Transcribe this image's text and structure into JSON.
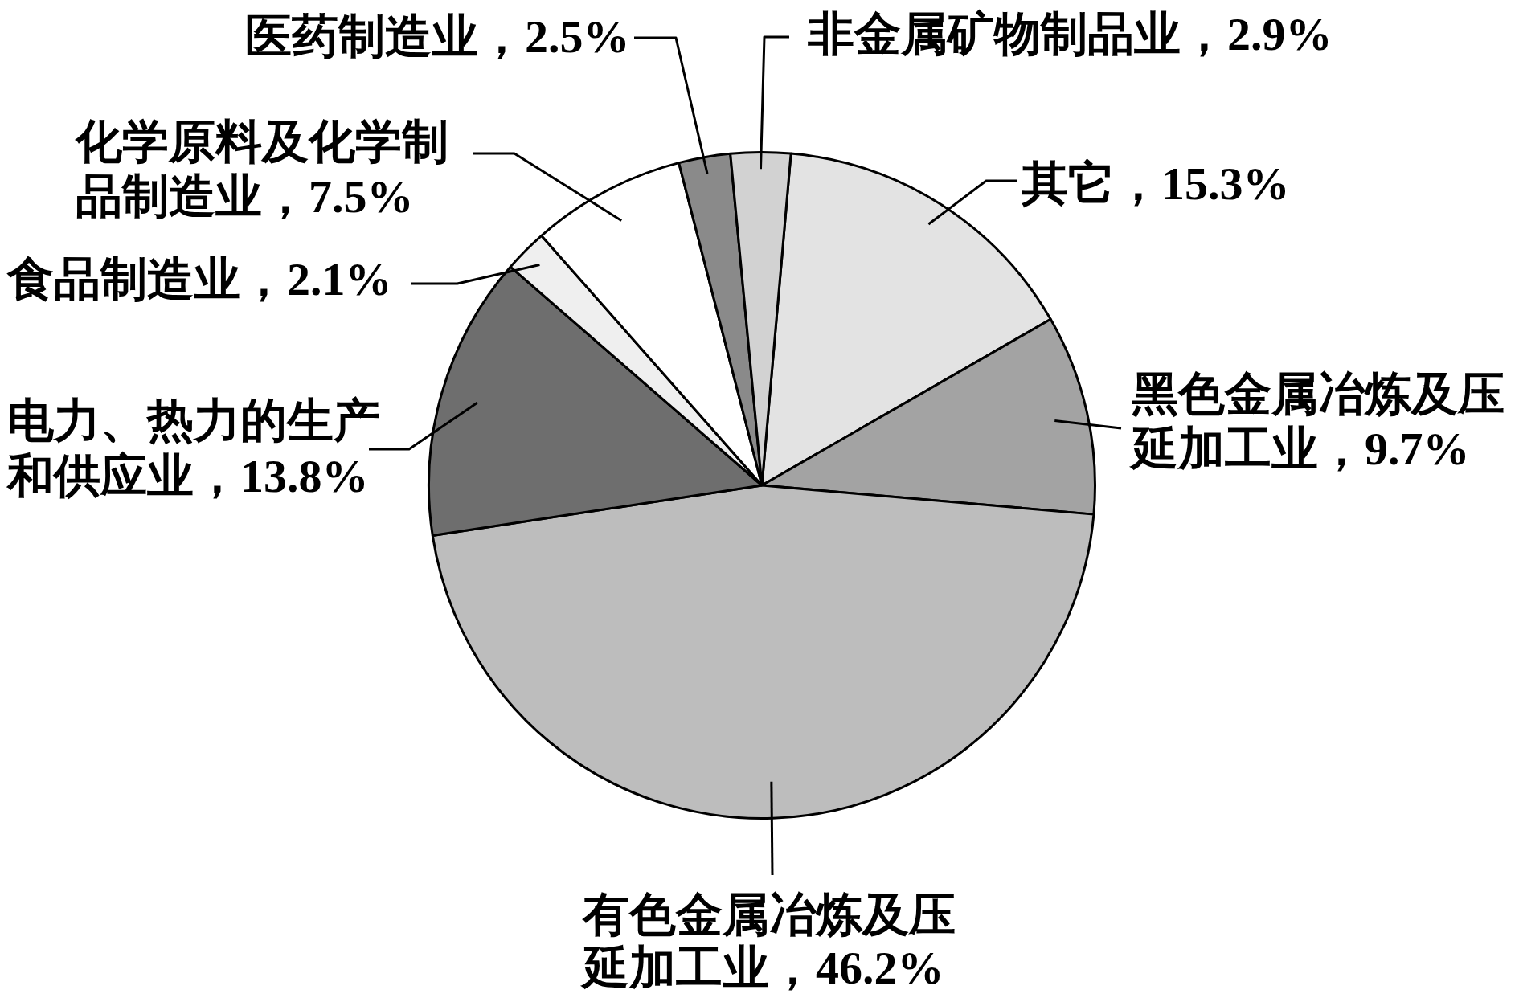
{
  "chart_data": {
    "type": "pie",
    "categories": [
      "其它",
      "黑色金属冶炼及压延加工业",
      "有色金属冶炼及压延加工业",
      "电力、热力的生产和供应业",
      "食品制造业",
      "化学原料及化学制品制造业",
      "医药制造业",
      "非金属矿物制品业"
    ],
    "values": [
      15.3,
      9.7,
      46.2,
      13.8,
      2.1,
      7.5,
      2.5,
      2.9
    ],
    "value_labels": [
      "15.3%",
      "9.7%",
      "46.2%",
      "13.8%",
      "2.1%",
      "7.5%",
      "2.5%",
      "2.9%"
    ],
    "colors": [
      "#e3e3e3",
      "#a3a3a3",
      "#bdbdbd",
      "#6e6e6e",
      "#efefef",
      "#ffffff",
      "#8a8a8a",
      "#d2d2d2"
    ]
  }
}
